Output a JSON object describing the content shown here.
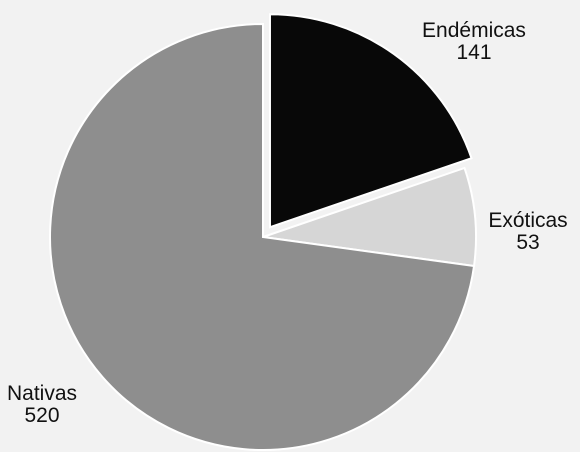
{
  "chart_data": {
    "type": "pie",
    "title": "",
    "slices": [
      {
        "label": "Endémicas",
        "value": 141,
        "color": "#080808",
        "exploded": true
      },
      {
        "label": "Exóticas",
        "value": 53,
        "color": "#d6d6d6",
        "exploded": false
      },
      {
        "label": "Nativas",
        "value": 520,
        "color": "#8e8e8e",
        "exploded": false
      }
    ],
    "legend": "none",
    "labels_position": "outside"
  }
}
